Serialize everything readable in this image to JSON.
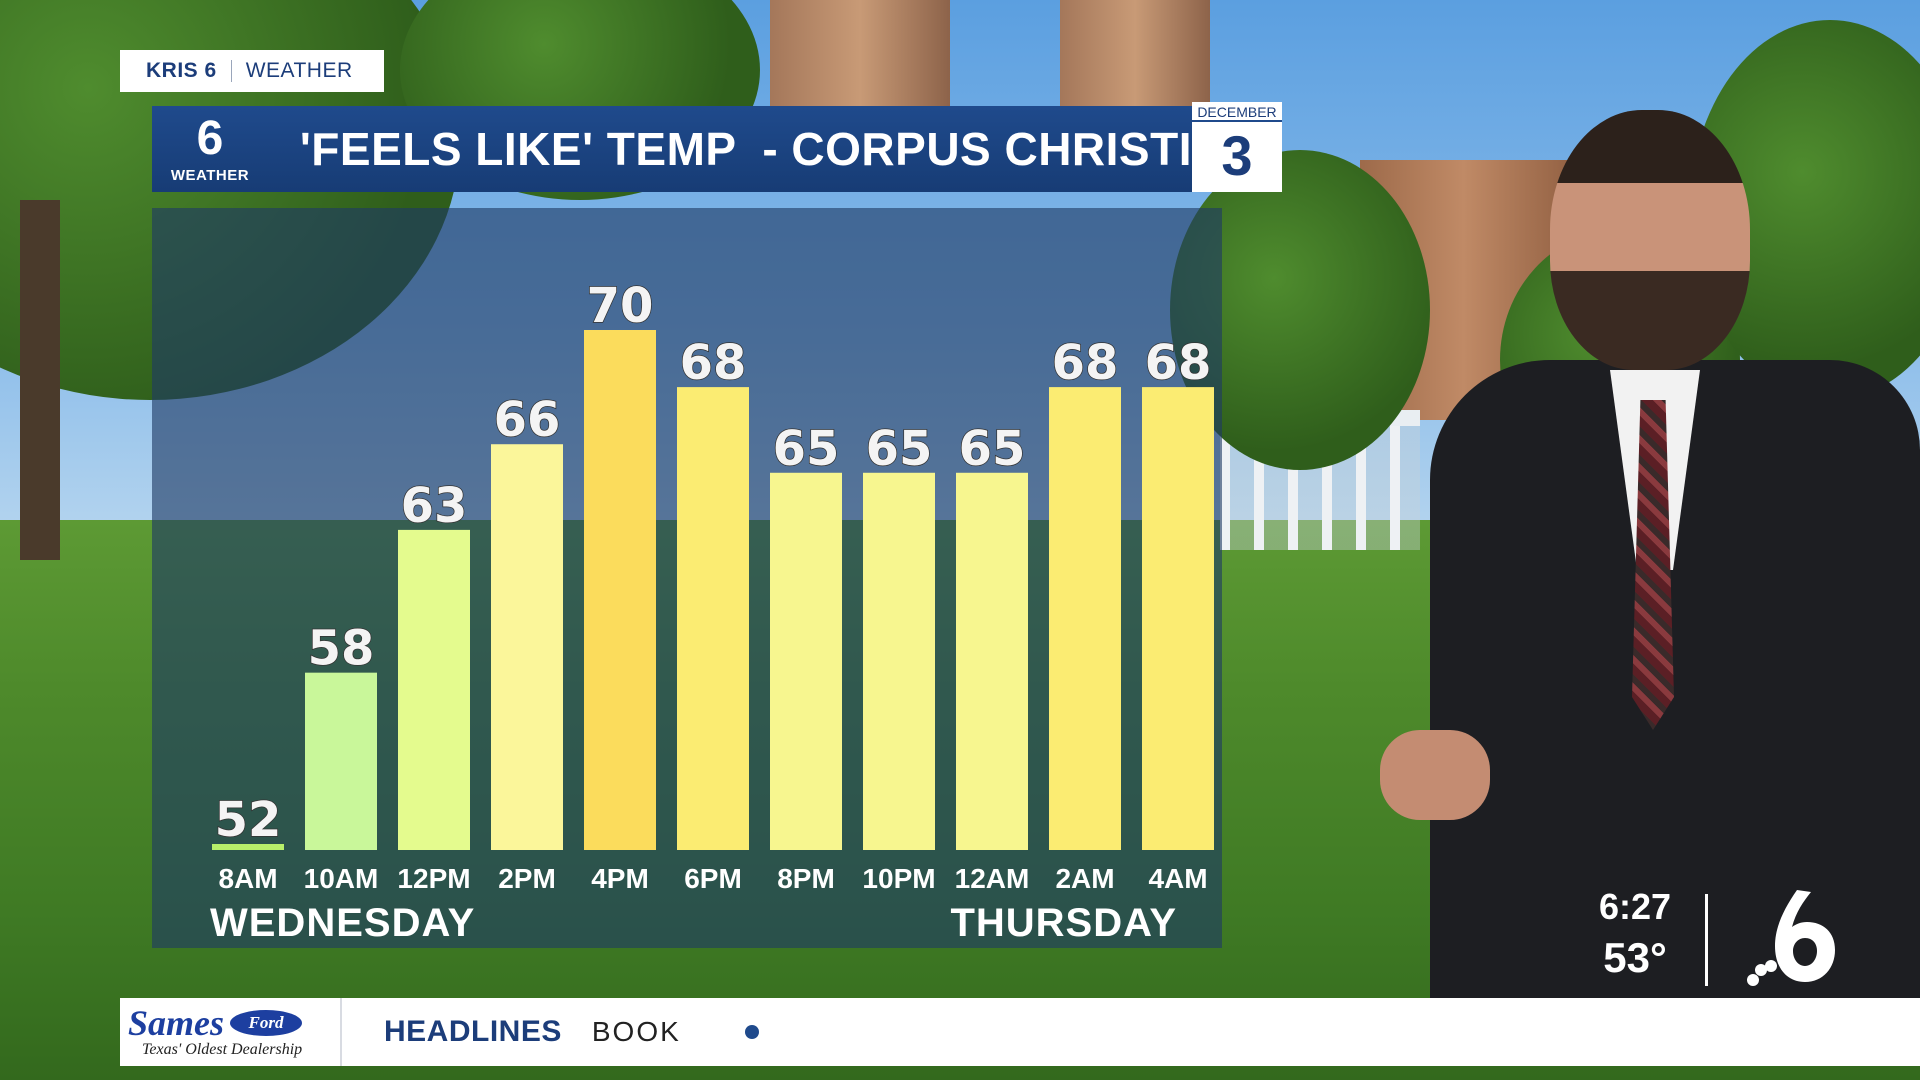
{
  "tab": {
    "brand": "KRIS 6",
    "section": "WEATHER"
  },
  "title_bar": {
    "logo_number": "6",
    "logo_label": "WEATHER",
    "title": "'FEELS LIKE' TEMP  - CORPUS CHRISTI"
  },
  "date": {
    "month": "DECEMBER",
    "day": "3"
  },
  "chart_data": {
    "type": "bar",
    "title": "'FEELS LIKE' TEMP  - CORPUS CHRISTI",
    "xlabel": "",
    "ylabel": "",
    "categories": [
      "8AM",
      "10AM",
      "12PM",
      "2PM",
      "4PM",
      "6PM",
      "8PM",
      "10PM",
      "12AM",
      "2AM",
      "4AM"
    ],
    "values": [
      52,
      58,
      63,
      66,
      70,
      68,
      65,
      65,
      65,
      68,
      68
    ],
    "ylim": [
      52,
      70
    ],
    "grid": false,
    "day_labels": [
      "WEDNESDAY",
      "THURSDAY"
    ],
    "colors": {
      "52": "#b8f06a",
      "58": "#c9f79a",
      "63": "#e4fb8e",
      "66": "#fbf69a",
      "65": "#f7f68f",
      "68": "#fbec72",
      "70": "#fbdc5c"
    }
  },
  "bug": {
    "time": "6:27",
    "temp": "53°",
    "logo_number": "6"
  },
  "ticker": {
    "sponsor_name": "Sames",
    "sponsor_make": "Ford",
    "sponsor_tagline": "Texas' Oldest Dealership",
    "label": "HEADLINES",
    "text": "BOOK"
  },
  "icons": {
    "bug_logo": "nbc-peacock-6-icon",
    "ticker_dot": "dot-icon"
  }
}
